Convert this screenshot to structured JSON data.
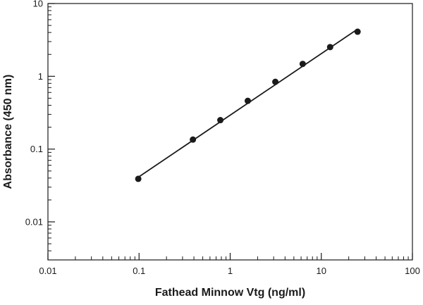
{
  "chart_data": {
    "type": "scatter",
    "xscale": "log",
    "yscale": "log",
    "xlim": [
      0.01,
      100
    ],
    "ylim": [
      0.003,
      10
    ],
    "xlabel": "Fathead Minnow Vtg (ng/ml)",
    "ylabel": "Absorbance (450 nm)",
    "xticks": [
      {
        "value": 0.01,
        "label": "0.01"
      },
      {
        "value": 0.1,
        "label": "0.1"
      },
      {
        "value": 1,
        "label": "1"
      },
      {
        "value": 10,
        "label": "10"
      },
      {
        "value": 100,
        "label": "100"
      }
    ],
    "yticks": [
      {
        "value": 0.01,
        "label": "0.01"
      },
      {
        "value": 0.1,
        "label": "0.1"
      },
      {
        "value": 1,
        "label": "1"
      },
      {
        "value": 10,
        "label": "10"
      }
    ],
    "grid": false,
    "points": [
      {
        "x": 0.098,
        "y": 0.039
      },
      {
        "x": 0.39,
        "y": 0.135
      },
      {
        "x": 0.78,
        "y": 0.25
      },
      {
        "x": 1.56,
        "y": 0.46
      },
      {
        "x": 3.13,
        "y": 0.84
      },
      {
        "x": 6.25,
        "y": 1.48
      },
      {
        "x": 12.5,
        "y": 2.52
      },
      {
        "x": 25,
        "y": 4.1
      }
    ],
    "fit_line": [
      {
        "x": 0.098,
        "y": 0.041
      },
      {
        "x": 25,
        "y": 4.45
      }
    ]
  }
}
